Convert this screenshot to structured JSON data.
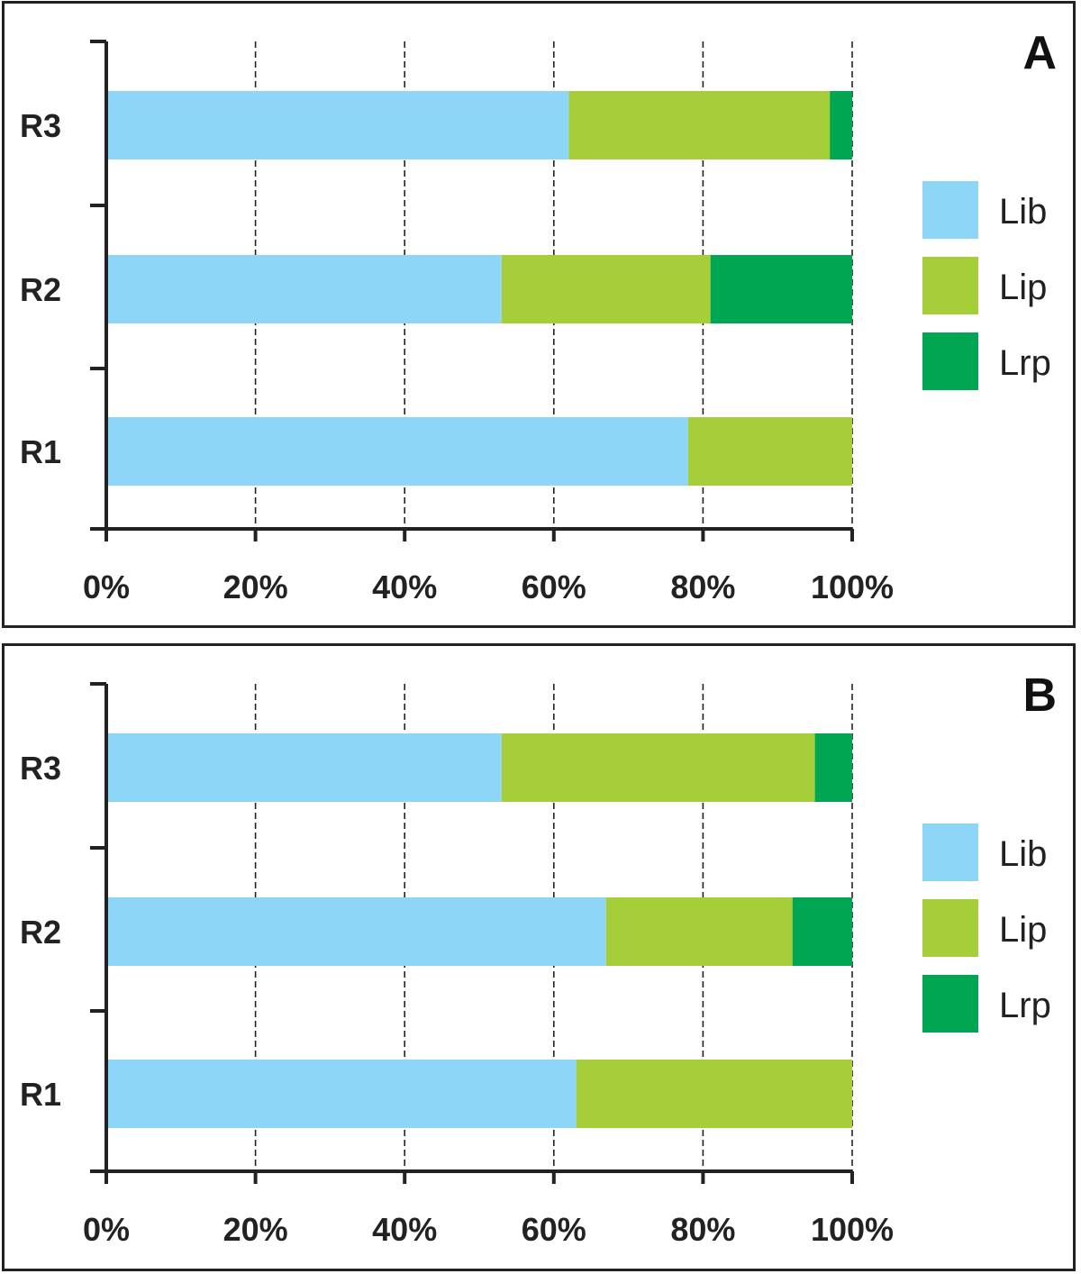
{
  "colors": {
    "Lib": "#8DD6F7",
    "Lip": "#A6CE39",
    "Lrp": "#00A651"
  },
  "chart_data": [
    {
      "type": "bar",
      "orientation": "horizontal",
      "stacked": "percent",
      "panel_label": "A",
      "categories": [
        "R1",
        "R2",
        "R3"
      ],
      "series": [
        {
          "name": "Lib",
          "values": [
            78,
            53,
            62
          ]
        },
        {
          "name": "Lip",
          "values": [
            22,
            28,
            35
          ]
        },
        {
          "name": "Lrp",
          "values": [
            0,
            19,
            3
          ]
        }
      ],
      "xlim": [
        0,
        100
      ],
      "x_ticks": [
        "0%",
        "20%",
        "40%",
        "60%",
        "80%",
        "100%"
      ],
      "grid": "vertical dashed",
      "legend_position": "right"
    },
    {
      "type": "bar",
      "orientation": "horizontal",
      "stacked": "percent",
      "panel_label": "B",
      "categories": [
        "R1",
        "R2",
        "R3"
      ],
      "series": [
        {
          "name": "Lib",
          "values": [
            63,
            67,
            53
          ]
        },
        {
          "name": "Lip",
          "values": [
            37,
            25,
            42
          ]
        },
        {
          "name": "Lrp",
          "values": [
            0,
            8,
            5
          ]
        }
      ],
      "xlim": [
        0,
        100
      ],
      "x_ticks": [
        "0%",
        "20%",
        "40%",
        "60%",
        "80%",
        "100%"
      ],
      "grid": "vertical dashed",
      "legend_position": "right"
    }
  ]
}
